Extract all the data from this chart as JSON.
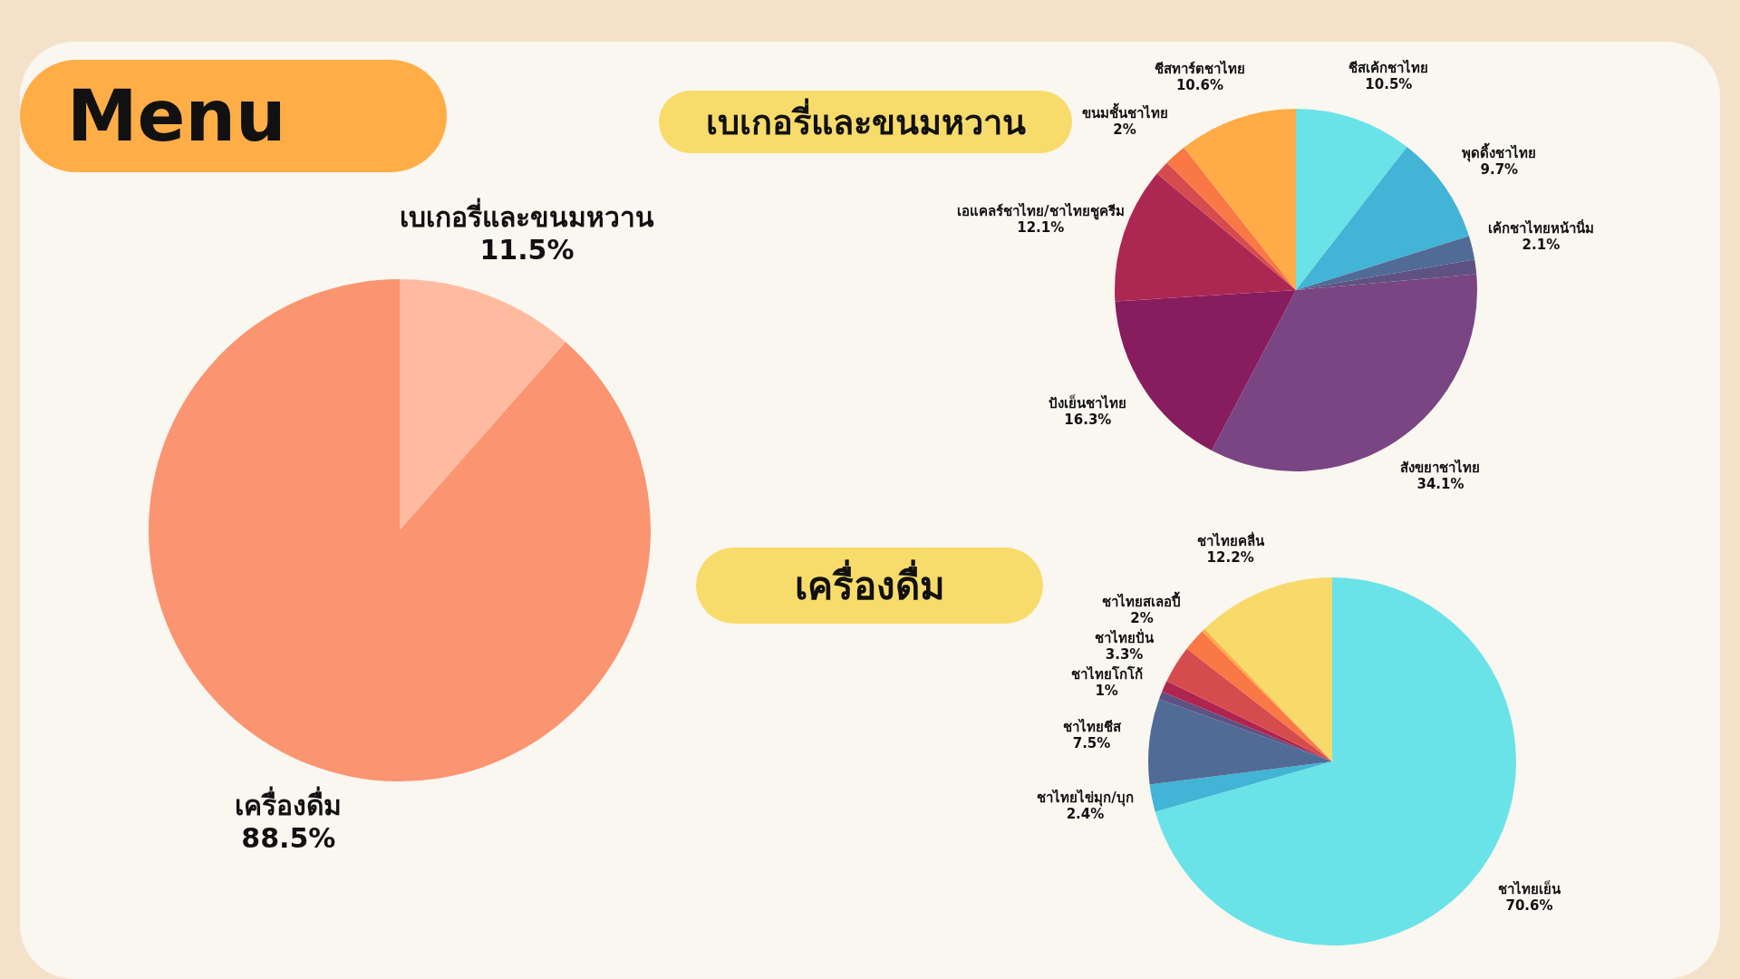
{
  "chart_data": [
    {
      "type": "pie",
      "title": "Menu",
      "categories": [
        "เบเกอรี่และขนมหวาน",
        "เครื่องดื่ม"
      ],
      "values": [
        11.5,
        88.5
      ],
      "colors": [
        "#ffbba0",
        "#fb9470"
      ],
      "value_labels": [
        "11.5%",
        "88.5%"
      ],
      "legend": false
    },
    {
      "type": "pie",
      "title": "เบเกอรี่และขนมหวาน",
      "categories": [
        "ชีสเค้กชาไทย",
        "พุดดิ้งชาไทย",
        "เค้กชาไทยหน้านิ่ม",
        null,
        "สังขยาชาไทย",
        "ปังเย็นชาไทย",
        "เอแคลร์ชาไทย/ชาไทยชูครีม",
        null,
        "ขนมชั้นชาไทย",
        "ชีสทาร์ตชาไทย"
      ],
      "values": [
        10.5,
        9.7,
        2.1,
        1.3,
        34.1,
        16.3,
        12.1,
        1.3,
        2,
        10.6
      ],
      "colors": [
        "#6ae3e8",
        "#42b4d6",
        "#4f6b96",
        "#5e5283",
        "#7a4583",
        "#871d5e",
        "#ad2753",
        "#d64c4e",
        "#f97845",
        "#ffab47"
      ],
      "value_labels": [
        "10.5%",
        "9.7%",
        "2.1%",
        null,
        "34.1%",
        "16.3%",
        "12.1%",
        null,
        "2%",
        "10.6%"
      ],
      "legend": false
    },
    {
      "type": "pie",
      "title": "เครื่องดื่ม",
      "categories": [
        "ชาไทยเย็น",
        "ชาไทยไข่มุก/บุก",
        "ชาไทยชีส",
        null,
        "ชาไทยโกโก้",
        "ชาไทยปั่น",
        "ชาไทยสเลอปี้",
        null,
        "ชาไทยคลื่น"
      ],
      "values": [
        70.6,
        2.4,
        7.5,
        0.7,
        1,
        3.3,
        2,
        0.3,
        12.2
      ],
      "colors": [
        "#6ae3e8",
        "#42b4d6",
        "#4f6b96",
        "#5e5283",
        "#b02450",
        "#d64c4e",
        "#f97845",
        "#ffab47",
        "#f8da6b"
      ],
      "value_labels": [
        "70.6%",
        "2.4%",
        "7.5%",
        null,
        "1%",
        "3.3%",
        "2%",
        null,
        "12.2%"
      ],
      "legend": false
    }
  ]
}
